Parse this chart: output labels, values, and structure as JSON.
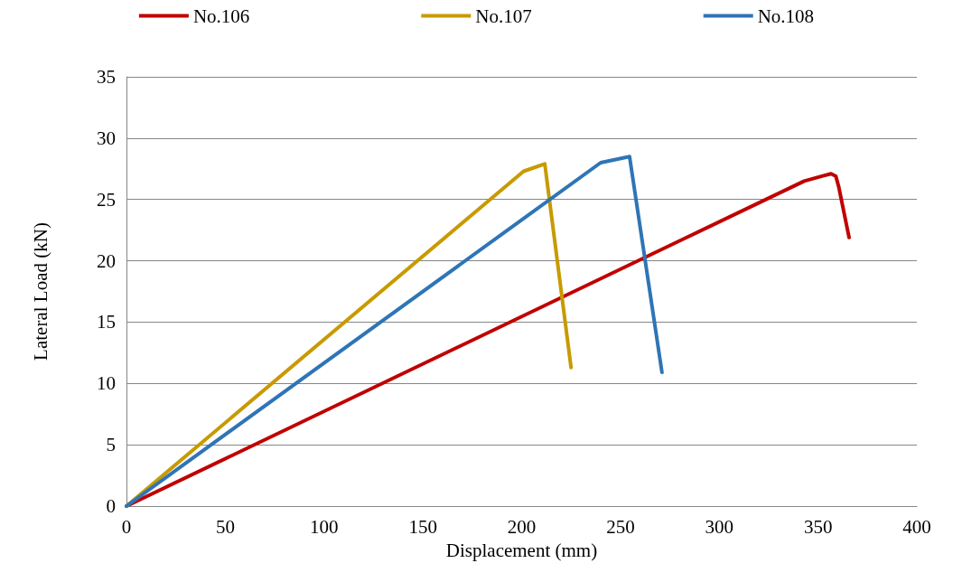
{
  "chart_data": {
    "type": "line",
    "xlabel": "Displacement (mm)",
    "ylabel": "Lateral Load (kN)",
    "xlim": [
      0,
      400
    ],
    "xticks": [
      0,
      50,
      100,
      150,
      200,
      250,
      300,
      350,
      400
    ],
    "ylim": [
      0,
      35
    ],
    "yticks": [
      0,
      5,
      10,
      15,
      20,
      25,
      30,
      35
    ],
    "grid": "y",
    "legend": "top",
    "marker": "none",
    "line_style": "solid",
    "series": [
      {
        "name": "No.106",
        "color": "#c00000",
        "x": [
          0,
          343,
          352,
          356.6,
          359,
          360.5,
          365.7
        ],
        "values": [
          0,
          26.5,
          26.9,
          27.1,
          26.9,
          26.0,
          21.9
        ]
      },
      {
        "name": "No.107",
        "color": "#c89a00",
        "x": [
          0,
          201,
          211.7,
          225
        ],
        "values": [
          0,
          27.3,
          27.9,
          11.3
        ]
      },
      {
        "name": "No.108",
        "color": "#2e75b6",
        "x": [
          0,
          240,
          254.6,
          271
        ],
        "values": [
          0,
          28.0,
          28.5,
          10.9
        ]
      }
    ]
  }
}
